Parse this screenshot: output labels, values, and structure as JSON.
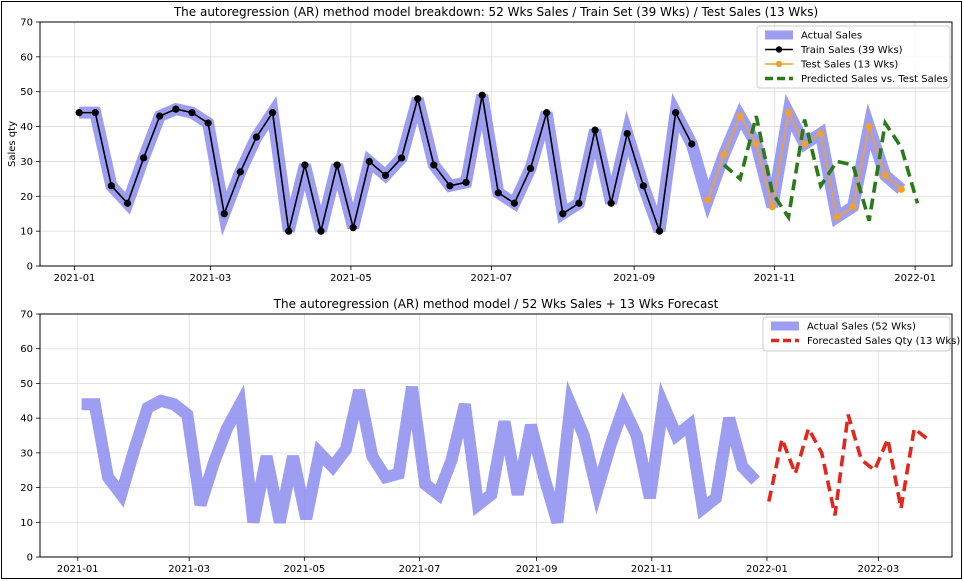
{
  "chart_data": [
    {
      "type": "line",
      "title": "The autoregression (AR) method model breakdown: 52 Wks Sales / Train Set (39 Wks) / Test Sales (13 Wks)",
      "ylabel": "Sales qty",
      "xlabel": "",
      "ylim": [
        0,
        70
      ],
      "yticks": [
        0,
        10,
        20,
        30,
        40,
        50,
        60,
        70
      ],
      "xticks": [
        "2021-01",
        "2021-03",
        "2021-05",
        "2021-07",
        "2021-09",
        "2021-11",
        "2022-01"
      ],
      "xtick_dates": [
        "2021-01-01",
        "2021-03-01",
        "2021-05-01",
        "2021-07-01",
        "2021-09-01",
        "2021-11-01",
        "2022-01-01"
      ],
      "x_start": "2021-01-03",
      "x_step_days": 7,
      "grid": true,
      "legend": "top-right",
      "series": [
        {
          "name": "Actual Sales",
          "color": "#8c8cf0",
          "values": [
            44,
            44,
            23,
            18,
            31,
            43,
            45,
            44,
            41,
            15,
            27,
            37,
            44,
            10,
            29,
            10,
            29,
            11,
            30,
            26,
            31,
            48,
            29,
            23,
            24,
            49,
            21,
            18,
            28,
            44,
            15,
            18,
            39,
            18,
            38,
            23,
            10,
            44,
            35,
            19,
            32,
            43,
            35,
            17,
            44,
            35,
            38,
            14,
            17,
            40,
            26,
            22
          ]
        },
        {
          "name": "Train Sales (39 Wks)",
          "color": "#000000",
          "values": [
            44,
            44,
            23,
            18,
            31,
            43,
            45,
            44,
            41,
            15,
            27,
            37,
            44,
            10,
            29,
            10,
            29,
            11,
            30,
            26,
            31,
            48,
            29,
            23,
            24,
            49,
            21,
            18,
            28,
            44,
            15,
            18,
            39,
            18,
            38,
            23,
            10,
            44,
            35
          ]
        },
        {
          "name": "Test Sales (13 Wks)",
          "color": "#f0a030",
          "start_index": 39,
          "values": [
            19,
            32,
            43,
            35,
            17,
            44,
            35,
            38,
            14,
            17,
            40,
            26,
            22
          ]
        },
        {
          "name": "Predicted Sales vs. Test Sales",
          "color": "#2a7a1a",
          "start_index": 40,
          "values": [
            29,
            25,
            43,
            21,
            14,
            42,
            23,
            30,
            29,
            13,
            41,
            34,
            18
          ]
        }
      ]
    },
    {
      "type": "line",
      "title": "The autoregression (AR) method model / 52 Wks Sales + 13 Wks Forecast",
      "ylabel": "",
      "xlabel": "",
      "ylim": [
        0,
        70
      ],
      "yticks": [
        0,
        10,
        20,
        30,
        40,
        50,
        60,
        70
      ],
      "xticks": [
        "2021-01",
        "2021-03",
        "2021-05",
        "2021-07",
        "2021-09",
        "2021-11",
        "2022-01",
        "2022-03"
      ],
      "xtick_dates": [
        "2021-01-01",
        "2021-03-01",
        "2021-05-01",
        "2021-07-01",
        "2021-09-01",
        "2021-11-01",
        "2022-01-01",
        "2022-03-01"
      ],
      "x_start": "2021-01-03",
      "x_step_days": 7,
      "grid": true,
      "legend": "top-right",
      "series": [
        {
          "name": "Actual Sales (52 Wks)",
          "color": "#8c8cf0",
          "values": [
            44,
            44,
            23,
            18,
            31,
            43,
            45,
            44,
            41,
            15,
            27,
            37,
            44,
            10,
            29,
            10,
            29,
            11,
            30,
            26,
            31,
            48,
            29,
            23,
            24,
            49,
            21,
            18,
            28,
            44,
            15,
            18,
            39,
            18,
            38,
            23,
            10,
            44,
            35,
            19,
            32,
            43,
            35,
            17,
            44,
            35,
            38,
            14,
            17,
            40,
            26,
            22
          ]
        },
        {
          "name": "Forecasted Sales Qty (13 Wks)",
          "color": "#e0281e",
          "start_index": 52,
          "values": [
            16,
            34,
            24,
            37,
            30,
            12,
            41,
            28,
            25,
            34,
            14,
            37,
            34
          ]
        }
      ]
    }
  ]
}
